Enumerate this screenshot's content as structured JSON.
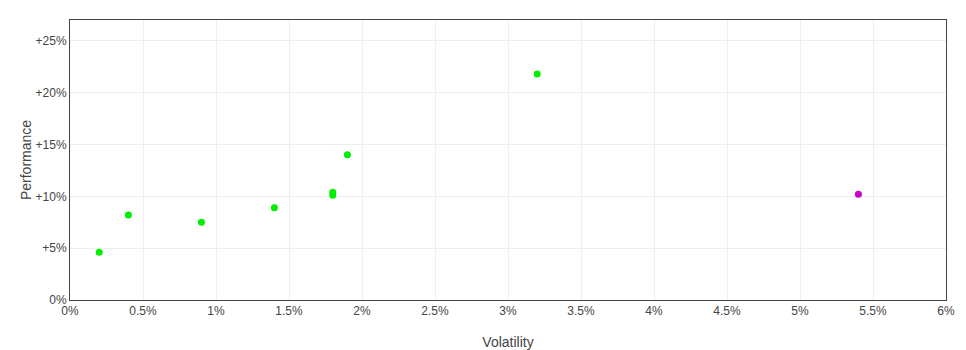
{
  "chart_data": {
    "type": "scatter",
    "x_label": "Volatility",
    "y_label": "Performance",
    "series": [
      {
        "color": "#00ee00",
        "x": [
          0.002,
          0.004,
          0.009,
          0.014,
          0.018,
          0.018,
          0.019,
          0.032
        ],
        "values": [
          0.046,
          0.082,
          0.075,
          0.089,
          0.101,
          0.104,
          0.14,
          0.218
        ]
      },
      {
        "color": "#cc00cc",
        "x": [
          0.054
        ],
        "values": [
          0.102
        ]
      }
    ],
    "xlim": [
      0,
      0.06
    ],
    "ylim": [
      0,
      0.27
    ],
    "xticks": [
      {
        "value": 0,
        "label": "0%"
      },
      {
        "value": 0.005,
        "label": "0.5%"
      },
      {
        "value": 0.01,
        "label": "1%"
      },
      {
        "value": 0.015,
        "label": "1.5%"
      },
      {
        "value": 0.02,
        "label": "2%"
      },
      {
        "value": 0.025,
        "label": "2.5%"
      },
      {
        "value": 0.03,
        "label": "3%"
      },
      {
        "value": 0.035,
        "label": "3.5%"
      },
      {
        "value": 0.04,
        "label": "4%"
      },
      {
        "value": 0.045,
        "label": "4.5%"
      },
      {
        "value": 0.05,
        "label": "5%"
      },
      {
        "value": 0.055,
        "label": "5.5%"
      },
      {
        "value": 0.06,
        "label": "6%"
      }
    ],
    "yticks": [
      {
        "value": 0,
        "label": "0%"
      },
      {
        "value": 0.05,
        "label": "+5%"
      },
      {
        "value": 0.1,
        "label": "+10%"
      },
      {
        "value": 0.15,
        "label": "+15%"
      },
      {
        "value": 0.2,
        "label": "+20%"
      },
      {
        "value": 0.25,
        "label": "+25%"
      }
    ],
    "grid": true
  }
}
